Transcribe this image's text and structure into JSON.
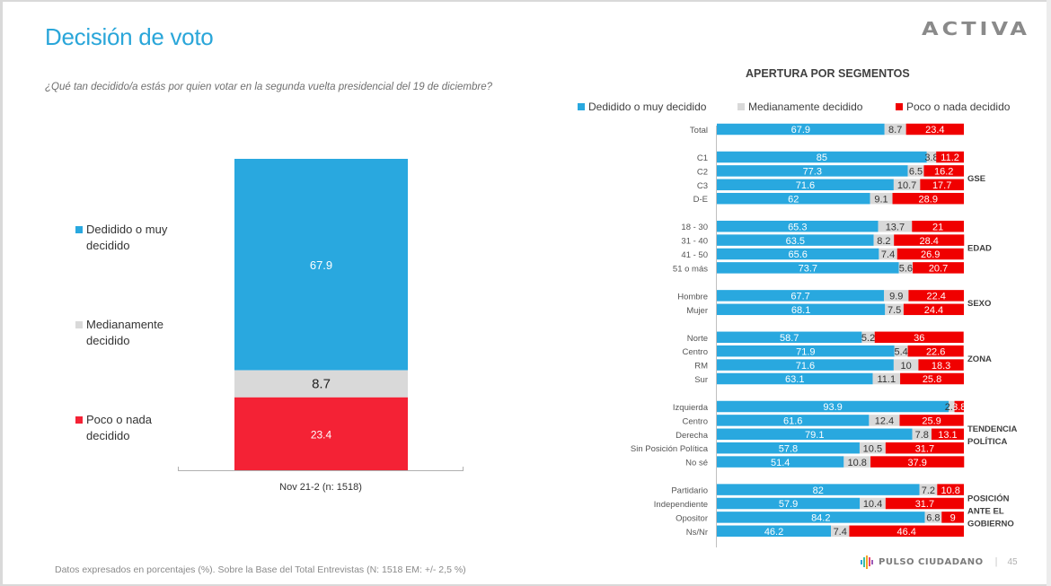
{
  "header": {
    "title": "Decisión de voto",
    "question": "¿Qué tan decidido/a estás por quien votar en la segunda vuelta presidencial del 19 de diciembre?",
    "logo": "ACTIVA"
  },
  "colors": {
    "decidido": "#29a8df",
    "medianamente": "#d9d9d9",
    "poco": "#f00000",
    "poco_main": "#f42235",
    "title": "#2aa6d9"
  },
  "footer": {
    "note": "Datos expresados en porcentajes (%). Sobre la Base del Total Entrevistas (N: 1518  EM: +/- 2,5 %)",
    "brand": "PULSO CIUDADANO",
    "separator": "|",
    "page_number": "45"
  },
  "chart_data": [
    {
      "type": "bar",
      "orientation": "vertical-stacked",
      "categories": [
        "Nov 21-2 (n: 1518)"
      ],
      "series": [
        {
          "name": "Dedidido o muy decidido",
          "values": [
            67.9
          ]
        },
        {
          "name": "Medianamente decidido",
          "values": [
            8.7
          ]
        },
        {
          "name": "Poco o nada decidido",
          "values": [
            23.4
          ]
        }
      ],
      "legend": [
        "Dedidido o muy decidido",
        "Medianamente decidido",
        "Poco o nada decidido"
      ],
      "legend_position": "left",
      "ylim": [
        0,
        100
      ],
      "title": "",
      "xlabel": "",
      "ylabel": ""
    },
    {
      "type": "bar",
      "orientation": "horizontal-stacked",
      "title": "APERTURA POR SEGMENTOS",
      "legend": [
        "Dedidido o muy decidido",
        "Medianamente decidido",
        "Poco o nada decidido"
      ],
      "legend_position": "top",
      "xlim": [
        0,
        100
      ],
      "groups": [
        {
          "name": "",
          "rows": [
            {
              "label": "Total",
              "values": [
                67.9,
                8.7,
                23.4
              ]
            }
          ]
        },
        {
          "name": "GSE",
          "rows": [
            {
              "label": "C1",
              "values": [
                85,
                3.8,
                11.2
              ]
            },
            {
              "label": "C2",
              "values": [
                77.3,
                6.5,
                16.2
              ]
            },
            {
              "label": "C3",
              "values": [
                71.6,
                10.7,
                17.7
              ]
            },
            {
              "label": "D-E",
              "values": [
                62,
                9.1,
                28.9
              ]
            }
          ]
        },
        {
          "name": "EDAD",
          "rows": [
            {
              "label": "18 - 30",
              "values": [
                65.3,
                13.7,
                21
              ]
            },
            {
              "label": "31 - 40",
              "values": [
                63.5,
                8.2,
                28.4
              ]
            },
            {
              "label": "41 - 50",
              "values": [
                65.6,
                7.4,
                26.9
              ]
            },
            {
              "label": "51 o más",
              "values": [
                73.7,
                5.6,
                20.7
              ]
            }
          ]
        },
        {
          "name": "SEXO",
          "rows": [
            {
              "label": "Hombre",
              "values": [
                67.7,
                9.9,
                22.4
              ]
            },
            {
              "label": "Mujer",
              "values": [
                68.1,
                7.5,
                24.4
              ]
            }
          ]
        },
        {
          "name": "ZONA",
          "rows": [
            {
              "label": "Norte",
              "values": [
                58.7,
                5.2,
                36
              ]
            },
            {
              "label": "Centro",
              "values": [
                71.9,
                5.4,
                22.6
              ]
            },
            {
              "label": "RM",
              "values": [
                71.6,
                10,
                18.3
              ]
            },
            {
              "label": "Sur",
              "values": [
                63.1,
                11.1,
                25.8
              ]
            }
          ]
        },
        {
          "name": "TENDENCIA POLÍTICA",
          "rows": [
            {
              "label": "Izquierda",
              "values": [
                93.9,
                2.3,
                3.8
              ]
            },
            {
              "label": "Centro",
              "values": [
                61.6,
                12.4,
                25.9
              ]
            },
            {
              "label": "Derecha",
              "values": [
                79.1,
                7.8,
                13.1
              ]
            },
            {
              "label": "Sin Posición Política",
              "values": [
                57.8,
                10.5,
                31.7
              ]
            },
            {
              "label": "No sé",
              "values": [
                51.4,
                10.8,
                37.9
              ]
            }
          ]
        },
        {
          "name": "POSICIÓN ANTE EL GOBIERNO",
          "rows": [
            {
              "label": "Partidario",
              "values": [
                82,
                7.2,
                10.8
              ]
            },
            {
              "label": "Independiente",
              "values": [
                57.9,
                10.4,
                31.7
              ]
            },
            {
              "label": "Opositor",
              "values": [
                84.2,
                6.8,
                9
              ]
            },
            {
              "label": "Ns/Nr",
              "values": [
                46.2,
                7.4,
                46.4
              ]
            }
          ]
        }
      ]
    }
  ]
}
